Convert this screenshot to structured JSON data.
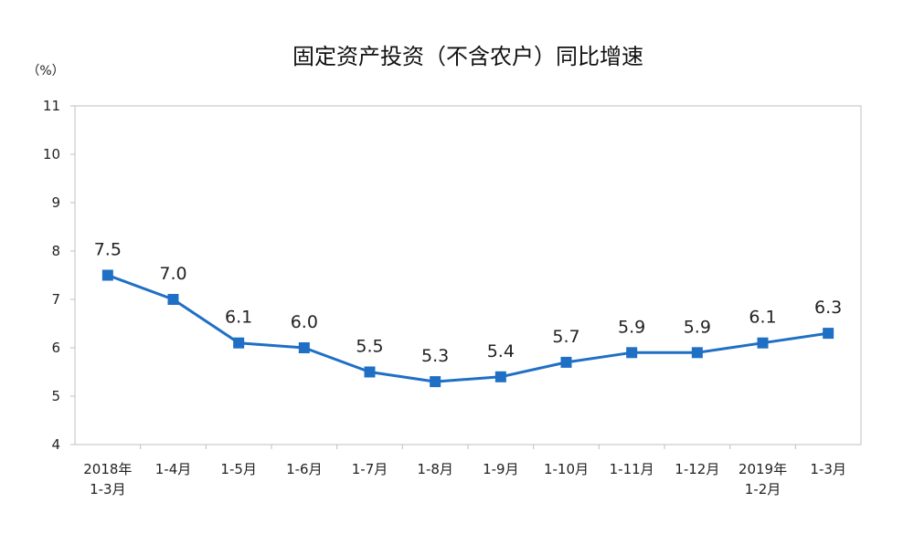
{
  "chart_data": {
    "type": "line",
    "title": "固定资产投资（不含农户）同比增速",
    "unit_label": "（%）",
    "ylim": [
      4,
      11
    ],
    "yticks": [
      4,
      5,
      6,
      7,
      8,
      9,
      10,
      11
    ],
    "categories": [
      [
        "2018年",
        "1-3月"
      ],
      [
        "1-4月"
      ],
      [
        "1-5月"
      ],
      [
        "1-6月"
      ],
      [
        "1-7月"
      ],
      [
        "1-8月"
      ],
      [
        "1-9月"
      ],
      [
        "1-10月"
      ],
      [
        "1-11月"
      ],
      [
        "1-12月"
      ],
      [
        "2019年",
        "1-2月"
      ],
      [
        "1-3月"
      ]
    ],
    "series": [
      {
        "values": [
          7.5,
          7.0,
          6.1,
          6.0,
          5.5,
          5.3,
          5.4,
          5.7,
          5.9,
          5.9,
          6.1,
          6.3
        ],
        "labels": [
          "7.5",
          "7.0",
          "6.1",
          "6.0",
          "5.5",
          "5.3",
          "5.4",
          "5.7",
          "5.9",
          "5.9",
          "6.1",
          "6.3"
        ]
      }
    ],
    "color": "#1f6fc5",
    "marker": "square",
    "grid": false
  }
}
